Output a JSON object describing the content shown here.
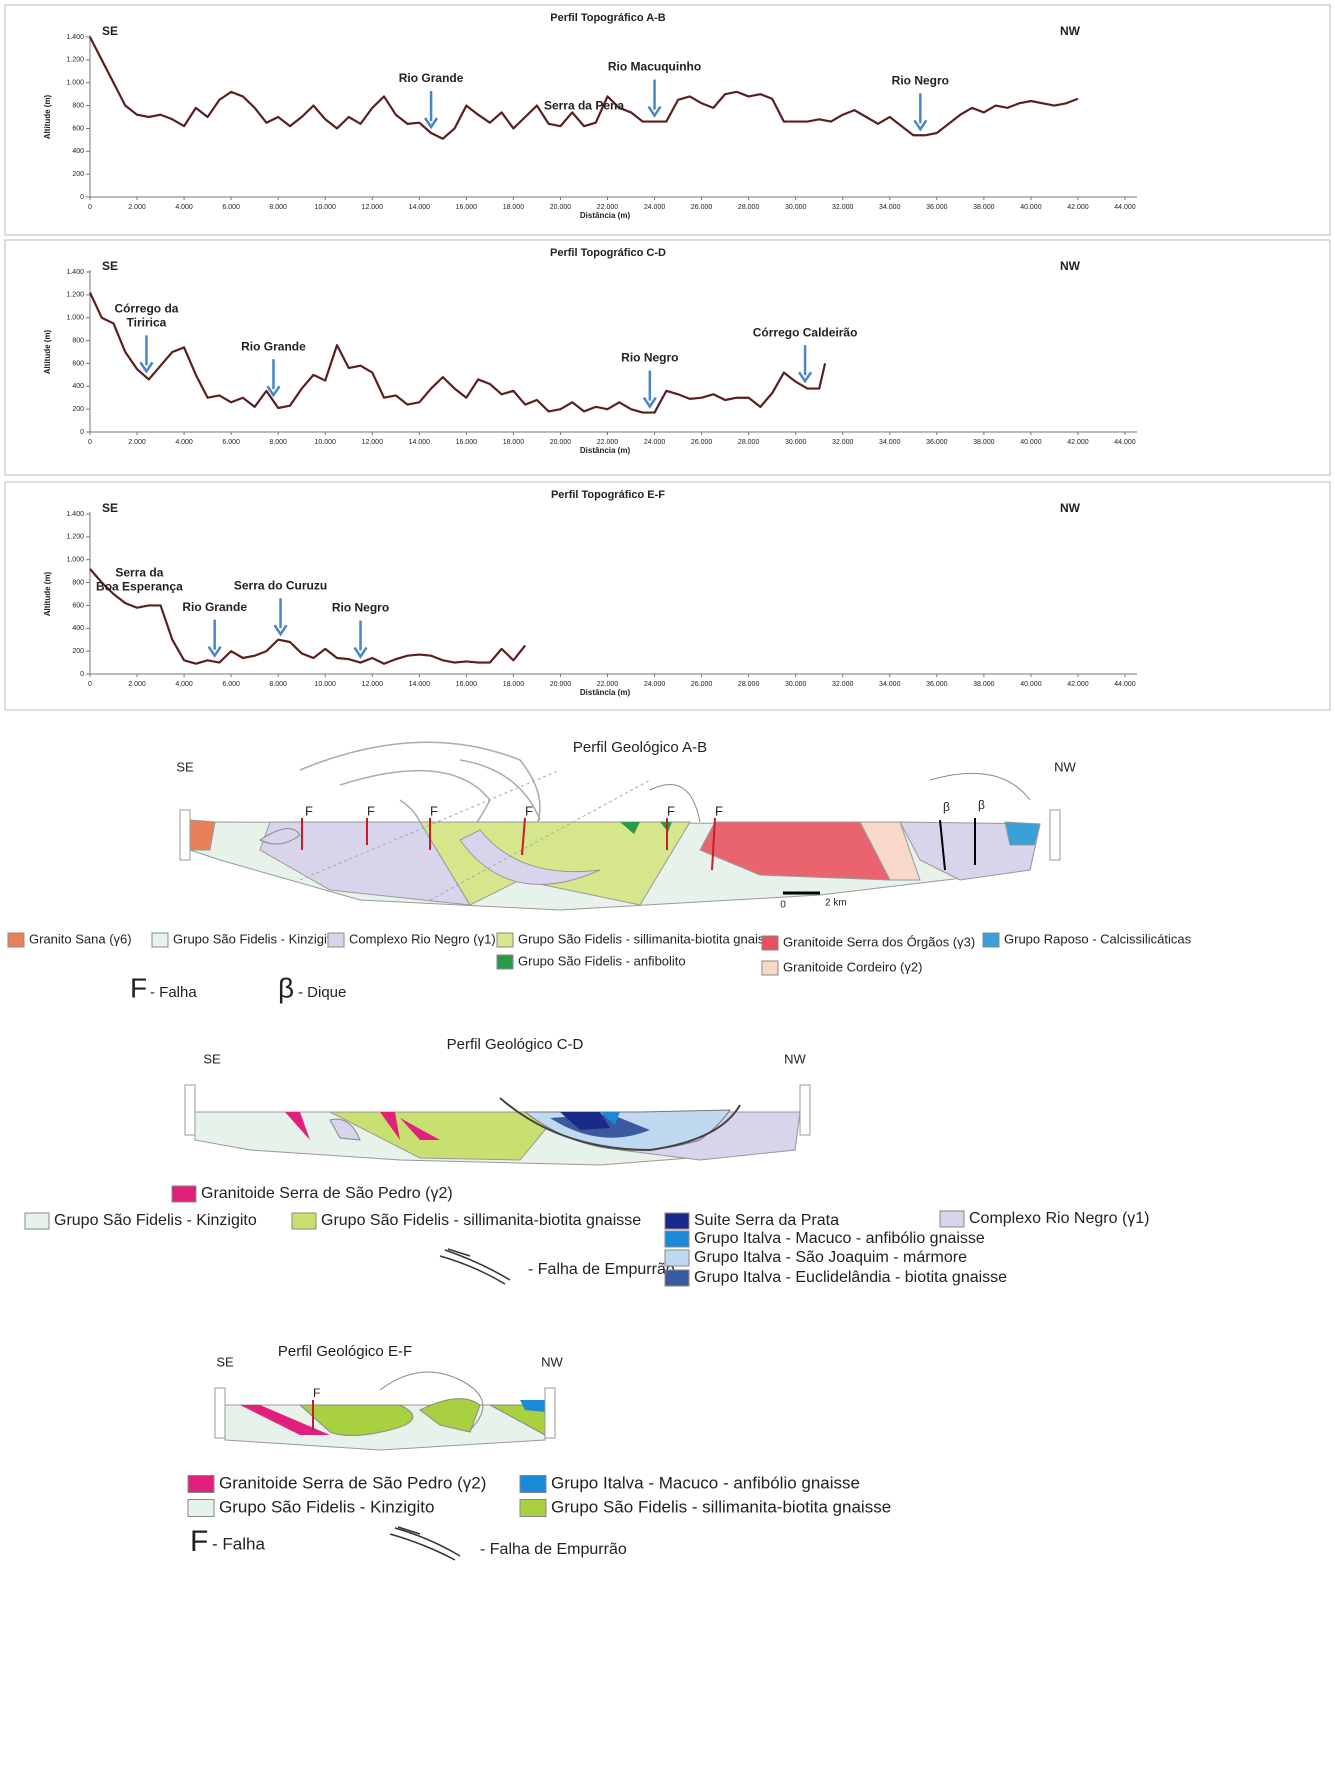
{
  "chart_data": [
    {
      "type": "line",
      "title": "Perfil Topográfico A-B",
      "left_label": "SE",
      "right_label": "NW",
      "xlabel": "Distância (m)",
      "ylabel": "Altitude (m)",
      "color": "#5c1f1f",
      "xlim": [
        0,
        44000
      ],
      "ylim": [
        0,
        1400
      ],
      "xticks": [
        0,
        {
          "value": 2000,
          "label": "2.000"
        },
        {
          "value": 4000,
          "label": "4.000"
        },
        {
          "value": 6000,
          "label": "6.000"
        },
        {
          "value": 8000,
          "label": "8.000"
        },
        {
          "value": 10000,
          "label": "10.000"
        },
        {
          "value": 12000,
          "label": "12.000"
        },
        {
          "value": 14000,
          "label": "14.000"
        },
        {
          "value": 16000,
          "label": "16.000"
        },
        {
          "value": 18000,
          "label": "18.000"
        },
        {
          "value": 20000,
          "label": "20.000"
        },
        {
          "value": 22000,
          "label": "22.000"
        },
        {
          "value": 24000,
          "label": "24.000"
        },
        {
          "value": 26000,
          "label": "26.000"
        },
        {
          "value": 28000,
          "label": "28.000"
        },
        {
          "value": 30000,
          "label": "30.000"
        },
        {
          "value": 32000,
          "label": "32.000"
        },
        {
          "value": 34000,
          "label": "34.000"
        },
        {
          "value": 36000,
          "label": "36.000"
        },
        {
          "value": 38000,
          "label": "38.000"
        },
        {
          "value": 40000,
          "label": "40.000"
        },
        {
          "value": 42000,
          "label": "42.000"
        },
        {
          "value": 44000,
          "label": "44.000"
        }
      ],
      "yticks": [
        0,
        200,
        400,
        600,
        800,
        {
          "value": 1000,
          "label": "1.000"
        },
        {
          "value": 1200,
          "label": "1.200"
        },
        {
          "value": 1400,
          "label": "1.400"
        }
      ],
      "x": [
        0,
        500,
        1000,
        1500,
        2000,
        2500,
        3000,
        3500,
        4000,
        4500,
        5000,
        5500,
        6000,
        6500,
        7000,
        7500,
        8000,
        8500,
        9000,
        9500,
        10000,
        10500,
        11000,
        11500,
        12000,
        12500,
        13000,
        13500,
        14000,
        14500,
        15000,
        15500,
        16000,
        16500,
        17000,
        17500,
        18000,
        18500,
        19000,
        19500,
        20000,
        20500,
        21000,
        21500,
        22000,
        22500,
        23000,
        23500,
        24000,
        24500,
        25000,
        25500,
        26000,
        26500,
        27000,
        27500,
        28000,
        28500,
        29000,
        29500,
        30000,
        30500,
        31000,
        31500,
        32000,
        32500,
        33000,
        33500,
        34000,
        34500,
        35000,
        35500,
        36000,
        36500,
        37000,
        37500,
        38000,
        38500,
        39000,
        39500,
        40000,
        40500,
        41000,
        41500,
        42000
      ],
      "values": [
        1400,
        1200,
        1000,
        800,
        720,
        700,
        720,
        680,
        620,
        780,
        700,
        850,
        920,
        880,
        780,
        650,
        700,
        620,
        700,
        800,
        680,
        600,
        700,
        640,
        780,
        880,
        720,
        640,
        650,
        560,
        510,
        600,
        800,
        720,
        650,
        740,
        600,
        700,
        800,
        640,
        620,
        740,
        620,
        650,
        880,
        780,
        740,
        660,
        660,
        660,
        850,
        880,
        820,
        780,
        900,
        920,
        880,
        900,
        860,
        660,
        660,
        660,
        680,
        660,
        720,
        760,
        700,
        640,
        700,
        620,
        540,
        540,
        560,
        640,
        720,
        780,
        740,
        800,
        780,
        820,
        840,
        820,
        800,
        820,
        860
      ],
      "annotations": [
        {
          "lines": [
            "Rio Grande"
          ],
          "x": 14500,
          "arrow": true
        },
        {
          "lines": [
            "Serra da Pena"
          ],
          "x": 21000,
          "arrow": false
        },
        {
          "lines": [
            "Rio Macuquinho"
          ],
          "x": 24000,
          "arrow": true
        },
        {
          "lines": [
            "Rio Negro"
          ],
          "x": 35300,
          "arrow": true
        }
      ]
    },
    {
      "type": "line",
      "title": "Perfil Topográfico C-D",
      "left_label": "SE",
      "right_label": "NW",
      "xlabel": "Distância (m)",
      "ylabel": "Altitude (m)",
      "color": "#5c1f1f",
      "xlim": [
        0,
        44000
      ],
      "ylim": [
        0,
        1400
      ],
      "xticks": [
        0,
        {
          "value": 2000,
          "label": "2.000"
        },
        {
          "value": 4000,
          "label": "4.000"
        },
        {
          "value": 6000,
          "label": "6.000"
        },
        {
          "value": 8000,
          "label": "8.000"
        },
        {
          "value": 10000,
          "label": "10.000"
        },
        {
          "value": 12000,
          "label": "12.000"
        },
        {
          "value": 14000,
          "label": "14.000"
        },
        {
          "value": 16000,
          "label": "16.000"
        },
        {
          "value": 18000,
          "label": "18.000"
        },
        {
          "value": 20000,
          "label": "20.000"
        },
        {
          "value": 22000,
          "label": "22.000"
        },
        {
          "value": 24000,
          "label": "24.000"
        },
        {
          "value": 26000,
          "label": "26.000"
        },
        {
          "value": 28000,
          "label": "28.000"
        },
        {
          "value": 30000,
          "label": "30.000"
        },
        {
          "value": 32000,
          "label": "32.000"
        },
        {
          "value": 34000,
          "label": "34.000"
        },
        {
          "value": 36000,
          "label": "36.000"
        },
        {
          "value": 38000,
          "label": "38.000"
        },
        {
          "value": 40000,
          "label": "40.000"
        },
        {
          "value": 42000,
          "label": "42.000"
        },
        {
          "value": 44000,
          "label": "44.000"
        }
      ],
      "yticks": [
        0,
        200,
        400,
        600,
        800,
        {
          "value": 1000,
          "label": "1.000"
        },
        {
          "value": 1200,
          "label": "1.200"
        },
        {
          "value": 1400,
          "label": "1.400"
        }
      ],
      "x": [
        0,
        500,
        1000,
        1500,
        2000,
        2500,
        3000,
        3500,
        4000,
        4500,
        5000,
        5500,
        6000,
        6500,
        7000,
        7500,
        8000,
        8500,
        9000,
        9500,
        10000,
        10500,
        11000,
        11500,
        12000,
        12500,
        13000,
        13500,
        14000,
        14500,
        15000,
        15500,
        16000,
        16500,
        17000,
        17500,
        18000,
        18500,
        19000,
        19500,
        20000,
        20500,
        21000,
        21500,
        22000,
        22500,
        23000,
        23500,
        24000,
        24500,
        25000,
        25500,
        26000,
        26500,
        27000,
        27500,
        28000,
        28500,
        29000,
        29500,
        30000,
        30500,
        31000,
        31250
      ],
      "values": [
        1220,
        1000,
        950,
        700,
        550,
        460,
        580,
        700,
        740,
        500,
        300,
        320,
        260,
        300,
        220,
        360,
        210,
        230,
        380,
        500,
        450,
        760,
        560,
        580,
        520,
        300,
        320,
        240,
        260,
        380,
        480,
        380,
        300,
        460,
        420,
        330,
        360,
        240,
        280,
        180,
        200,
        260,
        180,
        220,
        200,
        260,
        200,
        170,
        170,
        360,
        330,
        290,
        300,
        330,
        280,
        300,
        300,
        220,
        340,
        520,
        440,
        380,
        380,
        600
      ],
      "annotations": [
        {
          "lines": [
            "Córrego da",
            "Tiririca"
          ],
          "x": 2400,
          "arrow": true
        },
        {
          "lines": [
            "Rio Grande"
          ],
          "x": 7800,
          "arrow": true
        },
        {
          "lines": [
            "Rio Negro"
          ],
          "x": 23800,
          "arrow": true
        },
        {
          "lines": [
            "Córrego Caldeirão"
          ],
          "x": 30400,
          "arrow": true
        }
      ]
    },
    {
      "type": "line",
      "title": "Perfil Topográfico E-F",
      "left_label": "SE",
      "right_label": "NW",
      "xlabel": "Distância (m)",
      "ylabel": "Altitude (m)",
      "color": "#5c1f1f",
      "xlim": [
        0,
        44000
      ],
      "ylim": [
        0,
        1400
      ],
      "xticks": [
        0,
        {
          "value": 2000,
          "label": "2.000"
        },
        {
          "value": 4000,
          "label": "4.000"
        },
        {
          "value": 6000,
          "label": "6.000"
        },
        {
          "value": 8000,
          "label": "8.000"
        },
        {
          "value": 10000,
          "label": "10.000"
        },
        {
          "value": 12000,
          "label": "12.000"
        },
        {
          "value": 14000,
          "label": "14.000"
        },
        {
          "value": 16000,
          "label": "16.000"
        },
        {
          "value": 18000,
          "label": "18.000"
        },
        {
          "value": 20000,
          "label": "20.000"
        },
        {
          "value": 22000,
          "label": "22.000"
        },
        {
          "value": 24000,
          "label": "24.000"
        },
        {
          "value": 26000,
          "label": "26.000"
        },
        {
          "value": 28000,
          "label": "28.000"
        },
        {
          "value": 30000,
          "label": "30.000"
        },
        {
          "value": 32000,
          "label": "32.000"
        },
        {
          "value": 34000,
          "label": "34.000"
        },
        {
          "value": 36000,
          "label": "36.000"
        },
        {
          "value": 38000,
          "label": "38.000"
        },
        {
          "value": 40000,
          "label": "40.000"
        },
        {
          "value": 42000,
          "label": "42.000"
        },
        {
          "value": 44000,
          "label": "44.000"
        }
      ],
      "yticks": [
        0,
        200,
        400,
        600,
        800,
        {
          "value": 1000,
          "label": "1.000"
        },
        {
          "value": 1200,
          "label": "1.200"
        },
        {
          "value": 1400,
          "label": "1.400"
        }
      ],
      "x": [
        0,
        500,
        1000,
        1500,
        2000,
        2500,
        3000,
        3500,
        4000,
        4500,
        5000,
        5500,
        6000,
        6500,
        7000,
        7500,
        8000,
        8500,
        9000,
        9500,
        10000,
        10500,
        11000,
        11500,
        12000,
        12500,
        13000,
        13500,
        14000,
        14500,
        15000,
        15500,
        16000,
        16500,
        17000,
        17500,
        18000,
        18500
      ],
      "values": [
        920,
        800,
        700,
        620,
        580,
        600,
        600,
        300,
        120,
        90,
        120,
        100,
        200,
        140,
        160,
        200,
        300,
        280,
        180,
        140,
        220,
        140,
        130,
        100,
        140,
        90,
        130,
        160,
        170,
        160,
        120,
        100,
        110,
        100,
        100,
        220,
        120,
        250
      ],
      "annotations": [
        {
          "lines": [
            "Serra da",
            "Boa Esperança"
          ],
          "x": 2100,
          "arrow": false
        },
        {
          "lines": [
            "Rio Grande"
          ],
          "x": 5300,
          "arrow": true
        },
        {
          "lines": [
            "Serra do Curuzu"
          ],
          "x": 8100,
          "arrow": true
        },
        {
          "lines": [
            "Rio Negro"
          ],
          "x": 11500,
          "arrow": true
        }
      ]
    }
  ],
  "geologic_sections": [
    {
      "title": "Perfil Geológico A-B",
      "left_label": "SE",
      "right_label": "NW",
      "scale_labels": [
        "0",
        "2 km"
      ],
      "legend": [
        {
          "label": "Granito Sana (γ6)",
          "color": "#e8805a"
        },
        {
          "label": "Grupo São Fidelis - Kinzigito",
          "color": "#e6f2ea"
        },
        {
          "label": "Complexo Rio Negro (γ1)",
          "color": "#d8d4ec"
        },
        {
          "label": "Grupo São Fidelis - sillimanita-biotita gnaisse",
          "color": "#d6e68a"
        },
        {
          "label": "Granitoide Serra dos Órgãos (γ3)",
          "color": "#e8505a"
        },
        {
          "label": "Grupo Raposo - Calcissilicáticas",
          "color": "#3aa0d8"
        },
        {
          "label": "Grupo São Fidelis - anfibolito",
          "color": "#2a9a4a"
        },
        {
          "label": "Granitoide Cordeiro (γ2)",
          "color": "#f8d8c8"
        }
      ],
      "fault_symbol": "F",
      "fault_label": "- Falha",
      "dike_symbol": "β",
      "dike_label": "- Dique"
    },
    {
      "title": "Perfil Geológico C-D",
      "left_label": "SE",
      "right_label": "NW",
      "legend": [
        {
          "label": "Granitoide Serra de São Pedro (γ2)",
          "color": "#e0207a"
        },
        {
          "label": "Grupo São Fidelis - Kinzigito",
          "color": "#e6f2ea"
        },
        {
          "label": "Grupo São Fidelis - sillimanita-biotita gnaisse",
          "color": "#c8e070"
        },
        {
          "label": "Suite Serra da Prata",
          "color": "#1a2a8a"
        },
        {
          "label": "Grupo Italva - Macuco - anfibólio gnaisse",
          "color": "#1a8ad8"
        },
        {
          "label": "Grupo Italva - São Joaquim - mármore",
          "color": "#c0d8f0"
        },
        {
          "label": "Grupo Italva - Euclidelândia - biotita gnaisse",
          "color": "#3a5aa0"
        },
        {
          "label": "Complexo Rio Negro (γ1)",
          "color": "#d8d4ec"
        }
      ],
      "thrust_label": "- Falha de Empurrão"
    },
    {
      "title": "Perfil Geológico E-F",
      "left_label": "SE",
      "right_label": "NW",
      "legend": [
        {
          "label": "Granitoide Serra de São Pedro (γ2)",
          "color": "#e0207a"
        },
        {
          "label": "Grupo Italva - Macuco - anfibólio gnaisse",
          "color": "#1a8ad8"
        },
        {
          "label": "Grupo São Fidelis - Kinzigito",
          "color": "#e6f2ea"
        },
        {
          "label": "Grupo São Fidelis - sillimanita-biotita gnaisse",
          "color": "#a8d040"
        }
      ],
      "fault_symbol": "F",
      "fault_label": "- Falha",
      "thrust_label": "- Falha de Empurrão"
    }
  ]
}
